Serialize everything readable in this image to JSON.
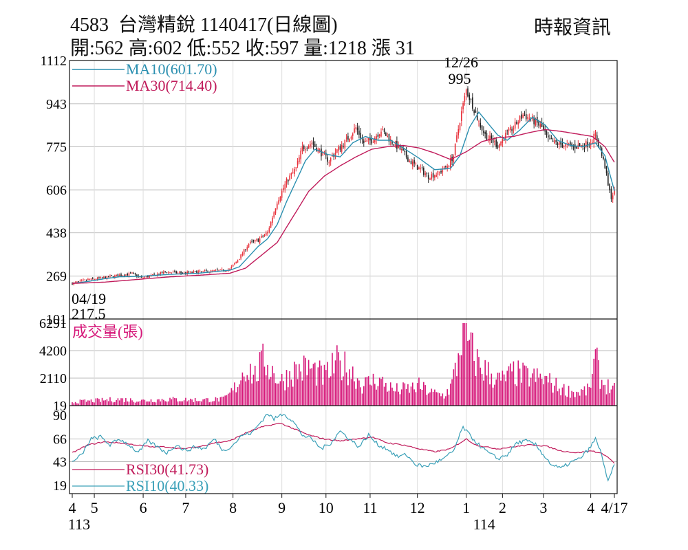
{
  "header": {
    "title": "4583  台灣精銳 1140417(日線圖)",
    "source": "時報資訊",
    "ohlc": "開:562 高:602 低:552 收:597 量:1218 漲 31"
  },
  "colors": {
    "up": "#e8303a",
    "down": "#222222",
    "ma10": "#2a8fb0",
    "ma30": "#c01a5a",
    "volume": "#d6187a",
    "rsi30": "#c01a5a",
    "rsi10": "#3aa0b8",
    "grid": "#bbbbbb"
  },
  "chart_data": [
    {
      "type": "candlestick",
      "panel": "price",
      "legend": [
        "MA10(601.70)",
        "MA30(714.40)"
      ],
      "yticks": [
        1112,
        943,
        775,
        606,
        438,
        269,
        101
      ],
      "ylim": [
        101,
        1112
      ],
      "grid": true,
      "annotations": [
        {
          "label": "12/26",
          "value": "995"
        },
        {
          "label": "04/19",
          "value": "217.5"
        }
      ],
      "anchors_price": [
        [
          0,
          240
        ],
        [
          10,
          255
        ],
        [
          20,
          262
        ],
        [
          30,
          272
        ],
        [
          38,
          278
        ],
        [
          44,
          262
        ],
        [
          50,
          270
        ],
        [
          60,
          285
        ],
        [
          70,
          280
        ],
        [
          80,
          285
        ],
        [
          92,
          290
        ],
        [
          100,
          295
        ],
        [
          106,
          340
        ],
        [
          112,
          395
        ],
        [
          118,
          410
        ],
        [
          124,
          440
        ],
        [
          130,
          560
        ],
        [
          136,
          640
        ],
        [
          142,
          690
        ],
        [
          146,
          770
        ],
        [
          152,
          790
        ],
        [
          158,
          750
        ],
        [
          163,
          720
        ],
        [
          168,
          760
        ],
        [
          174,
          800
        ],
        [
          180,
          850
        ],
        [
          185,
          790
        ],
        [
          190,
          800
        ],
        [
          196,
          840
        ],
        [
          202,
          800
        ],
        [
          208,
          765
        ],
        [
          214,
          720
        ],
        [
          220,
          690
        ],
        [
          226,
          660
        ],
        [
          232,
          670
        ],
        [
          238,
          700
        ],
        [
          242,
          740
        ],
        [
          246,
          880
        ],
        [
          250,
          995
        ],
        [
          254,
          940
        ],
        [
          258,
          870
        ],
        [
          262,
          820
        ],
        [
          266,
          800
        ],
        [
          270,
          780
        ],
        [
          275,
          820
        ],
        [
          280,
          850
        ],
        [
          286,
          900
        ],
        [
          292,
          880
        ],
        [
          298,
          850
        ],
        [
          302,
          800
        ],
        [
          306,
          790
        ],
        [
          312,
          780
        ],
        [
          318,
          775
        ],
        [
          324,
          780
        ],
        [
          328,
          790
        ],
        [
          332,
          820
        ],
        [
          335,
          760
        ],
        [
          338,
          700
        ],
        [
          340,
          620
        ],
        [
          342,
          578
        ],
        [
          344,
          597
        ]
      ],
      "series": [
        {
          "name": "MA10",
          "current": 601.7,
          "anchors": [
            [
              0,
              240
            ],
            [
              10,
              248
            ],
            [
              20,
              258
            ],
            [
              30,
              266
            ],
            [
              44,
              268
            ],
            [
              60,
              275
            ],
            [
              80,
              280
            ],
            [
              100,
              292
            ],
            [
              106,
              305
            ],
            [
              112,
              345
            ],
            [
              118,
              385
            ],
            [
              124,
              415
            ],
            [
              130,
              470
            ],
            [
              136,
              560
            ],
            [
              142,
              640
            ],
            [
              148,
              720
            ],
            [
              154,
              765
            ],
            [
              162,
              745
            ],
            [
              170,
              735
            ],
            [
              178,
              790
            ],
            [
              186,
              815
            ],
            [
              194,
              800
            ],
            [
              202,
              800
            ],
            [
              210,
              770
            ],
            [
              220,
              730
            ],
            [
              230,
              685
            ],
            [
              240,
              690
            ],
            [
              246,
              740
            ],
            [
              252,
              850
            ],
            [
              258,
              910
            ],
            [
              264,
              865
            ],
            [
              270,
              820
            ],
            [
              276,
              800
            ],
            [
              284,
              840
            ],
            [
              292,
              890
            ],
            [
              300,
              860
            ],
            [
              308,
              800
            ],
            [
              316,
              780
            ],
            [
              324,
              775
            ],
            [
              332,
              790
            ],
            [
              338,
              740
            ],
            [
              344,
              602
            ]
          ]
        },
        {
          "name": "MA30",
          "current": 714.4,
          "anchors": [
            [
              0,
              240
            ],
            [
              20,
              245
            ],
            [
              40,
              255
            ],
            [
              60,
              265
            ],
            [
              80,
              272
            ],
            [
              100,
              280
            ],
            [
              110,
              300
            ],
            [
              120,
              350
            ],
            [
              130,
              400
            ],
            [
              140,
              500
            ],
            [
              150,
              600
            ],
            [
              160,
              660
            ],
            [
              170,
              700
            ],
            [
              180,
              735
            ],
            [
              190,
              765
            ],
            [
              200,
              775
            ],
            [
              210,
              780
            ],
            [
              220,
              770
            ],
            [
              230,
              750
            ],
            [
              240,
              725
            ],
            [
              250,
              755
            ],
            [
              260,
              795
            ],
            [
              270,
              810
            ],
            [
              280,
              815
            ],
            [
              290,
              830
            ],
            [
              300,
              842
            ],
            [
              310,
              835
            ],
            [
              320,
              825
            ],
            [
              330,
              815
            ],
            [
              338,
              775
            ],
            [
              344,
              714
            ]
          ]
        }
      ]
    },
    {
      "type": "bar",
      "panel": "volume",
      "title": "成交量(張)",
      "yticks": [
        6291,
        4200,
        2110,
        19
      ],
      "ylim": [
        19,
        6291
      ],
      "anchors_volume": [
        [
          0,
          300
        ],
        [
          30,
          500
        ],
        [
          44,
          400
        ],
        [
          60,
          500
        ],
        [
          80,
          450
        ],
        [
          96,
          500
        ],
        [
          100,
          900
        ],
        [
          104,
          1500
        ],
        [
          110,
          3000
        ],
        [
          116,
          2300
        ],
        [
          122,
          3500
        ],
        [
          128,
          2500
        ],
        [
          132,
          1800
        ],
        [
          140,
          2600
        ],
        [
          150,
          2900
        ],
        [
          160,
          2200
        ],
        [
          168,
          3200
        ],
        [
          176,
          2800
        ],
        [
          184,
          1600
        ],
        [
          194,
          2000
        ],
        [
          204,
          1200
        ],
        [
          214,
          1300
        ],
        [
          220,
          1500
        ],
        [
          228,
          1000
        ],
        [
          236,
          800
        ],
        [
          240,
          1400
        ],
        [
          244,
          3000
        ],
        [
          248,
          6291
        ],
        [
          252,
          4500
        ],
        [
          256,
          3500
        ],
        [
          260,
          2900
        ],
        [
          266,
          2300
        ],
        [
          272,
          1900
        ],
        [
          280,
          2500
        ],
        [
          290,
          2200
        ],
        [
          300,
          2000
        ],
        [
          310,
          1300
        ],
        [
          320,
          1000
        ],
        [
          328,
          1200
        ],
        [
          332,
          3500
        ],
        [
          336,
          1800
        ],
        [
          340,
          1500
        ],
        [
          344,
          1218
        ]
      ]
    },
    {
      "type": "line",
      "panel": "rsi",
      "yticks": [
        90,
        66,
        43,
        19
      ],
      "ylim": [
        19,
        90
      ],
      "series": [
        {
          "name": "RSI30(41.73)",
          "anchors": [
            [
              0,
              52
            ],
            [
              10,
              60
            ],
            [
              20,
              63
            ],
            [
              30,
              62
            ],
            [
              40,
              60
            ],
            [
              50,
              58
            ],
            [
              60,
              58
            ],
            [
              70,
              56
            ],
            [
              80,
              58
            ],
            [
              90,
              62
            ],
            [
              100,
              64
            ],
            [
              110,
              72
            ],
            [
              120,
              78
            ],
            [
              126,
              80
            ],
            [
              132,
              82
            ],
            [
              138,
              78
            ],
            [
              144,
              74
            ],
            [
              150,
              70
            ],
            [
              160,
              66
            ],
            [
              170,
              64
            ],
            [
              180,
              66
            ],
            [
              190,
              68
            ],
            [
              200,
              62
            ],
            [
              210,
              60
            ],
            [
              220,
              56
            ],
            [
              230,
              53
            ],
            [
              240,
              56
            ],
            [
              250,
              66
            ],
            [
              256,
              60
            ],
            [
              262,
              58
            ],
            [
              270,
              56
            ],
            [
              280,
              58
            ],
            [
              290,
              60
            ],
            [
              300,
              59
            ],
            [
              310,
              54
            ],
            [
              320,
              52
            ],
            [
              330,
              54
            ],
            [
              338,
              50
            ],
            [
              344,
              41.7
            ]
          ]
        },
        {
          "name": "RSI10(40.33)",
          "anchors": [
            [
              0,
              42
            ],
            [
              6,
              50
            ],
            [
              12,
              66
            ],
            [
              18,
              68
            ],
            [
              24,
              60
            ],
            [
              30,
              66
            ],
            [
              36,
              60
            ],
            [
              42,
              52
            ],
            [
              48,
              64
            ],
            [
              54,
              58
            ],
            [
              60,
              52
            ],
            [
              66,
              60
            ],
            [
              72,
              54
            ],
            [
              78,
              58
            ],
            [
              84,
              56
            ],
            [
              90,
              66
            ],
            [
              96,
              54
            ],
            [
              102,
              60
            ],
            [
              108,
              70
            ],
            [
              114,
              72
            ],
            [
              120,
              84
            ],
            [
              124,
              92
            ],
            [
              128,
              86
            ],
            [
              134,
              92
            ],
            [
              140,
              84
            ],
            [
              146,
              70
            ],
            [
              152,
              66
            ],
            [
              158,
              56
            ],
            [
              164,
              62
            ],
            [
              170,
              74
            ],
            [
              176,
              66
            ],
            [
              182,
              58
            ],
            [
              188,
              70
            ],
            [
              194,
              60
            ],
            [
              200,
              56
            ],
            [
              206,
              48
            ],
            [
              212,
              50
            ],
            [
              218,
              40
            ],
            [
              224,
              38
            ],
            [
              230,
              42
            ],
            [
              236,
              46
            ],
            [
              242,
              54
            ],
            [
              248,
              78
            ],
            [
              252,
              70
            ],
            [
              258,
              60
            ],
            [
              264,
              52
            ],
            [
              270,
              46
            ],
            [
              276,
              50
            ],
            [
              282,
              62
            ],
            [
              288,
              64
            ],
            [
              294,
              60
            ],
            [
              300,
              48
            ],
            [
              304,
              40
            ],
            [
              310,
              36
            ],
            [
              316,
              42
            ],
            [
              322,
              46
            ],
            [
              328,
              56
            ],
            [
              332,
              66
            ],
            [
              336,
              50
            ],
            [
              340,
              22
            ],
            [
              344,
              40
            ]
          ]
        }
      ]
    }
  ],
  "x_axis": {
    "ticks": [
      {
        "label": "4",
        "i": 0
      },
      {
        "label": "5",
        "i": 14
      },
      {
        "label": "6",
        "i": 45
      },
      {
        "label": "7",
        "i": 72
      },
      {
        "label": "8",
        "i": 102
      },
      {
        "label": "9",
        "i": 133
      },
      {
        "label": "10",
        "i": 161
      },
      {
        "label": "11",
        "i": 189
      },
      {
        "label": "12",
        "i": 219
      },
      {
        "label": "1",
        "i": 250
      },
      {
        "label": "2",
        "i": 273
      },
      {
        "label": "3",
        "i": 299
      },
      {
        "label": "4",
        "i": 329
      },
      {
        "label": "4/17",
        "i": 344
      }
    ],
    "years": [
      {
        "label": "113",
        "i": 0
      },
      {
        "label": "114",
        "i": 257
      }
    ]
  }
}
